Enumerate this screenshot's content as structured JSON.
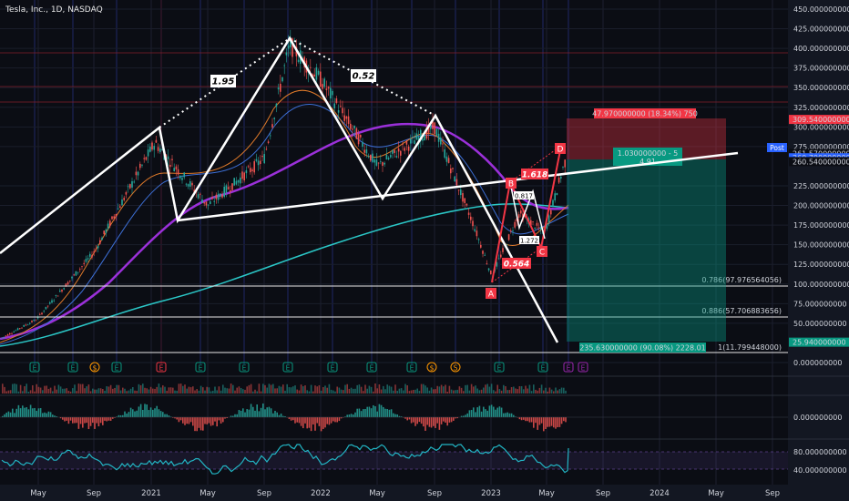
{
  "symbol": "Tesla, Inc., 1D, NASDAQ",
  "price_axis": {
    "ticks": [
      "450.000000000",
      "425.000000000",
      "400.000000000",
      "375.000000000",
      "350.000000000",
      "325.000000000",
      "300.000000000",
      "275.000000000",
      "225.000000000",
      "200.000000000",
      "175.000000000",
      "150.000000000",
      "125.000000000",
      "100.000000000",
      "75.000000000",
      "50.000000000",
      "0.000000000"
    ],
    "badges": [
      {
        "label": "309.540000000",
        "color": "#f23645"
      },
      {
        "label": "261.570000000",
        "color": "#0b0d14"
      },
      {
        "label": "260.700000000",
        "color": "#2962ff"
      },
      {
        "label": "260.540000000",
        "color": "#0b0d14"
      },
      {
        "label": "25.940000000",
        "color": "#089981"
      }
    ],
    "post_label": "Post"
  },
  "time_axis": [
    "May",
    "Sep",
    "2021",
    "May",
    "Sep",
    "2022",
    "May",
    "Sep",
    "2023",
    "May",
    "Sep",
    "2024",
    "May",
    "Sep"
  ],
  "harmonic": {
    "ratios": [
      "1.95",
      "0.52"
    ],
    "abcd_ratios": [
      "1.618",
      "0.564",
      "0.817",
      "1.272"
    ],
    "points": [
      "A",
      "B",
      "C",
      "D"
    ]
  },
  "fib_levels": [
    "0.786(97.976564056)",
    "0.886(57.706883656)",
    "1(11.799448000)"
  ],
  "position": {
    "risk_label": "47.970000000 (18.34%) 750",
    "entry_label": "1.030000000 - 5",
    "entry_sub": "4.91",
    "reward_label": "235.630000000 (90.08%) 2228.01"
  },
  "oscillator_panels": {
    "macd_tick": "0.000000000",
    "rsi_ticks": [
      "80.000000000",
      "40.000000000"
    ]
  },
  "events": [
    "E",
    "E",
    "$",
    "E",
    "E",
    "E",
    "E",
    "E",
    "E",
    "E",
    "E",
    "$",
    "S",
    "E",
    "E",
    "E",
    "E"
  ],
  "chart_data": {
    "type": "line",
    "title": "Tesla, Inc., 1D, NASDAQ",
    "x": [
      "2020-03",
      "2020-05",
      "2020-09",
      "2021-01",
      "2021-05",
      "2021-09",
      "2021-11",
      "2022-01",
      "2022-05",
      "2022-09",
      "2022-12",
      "2023-01",
      "2023-03",
      "2023-05",
      "2023-06"
    ],
    "series": [
      {
        "values": [
          30,
          55,
          140,
          280,
          200,
          260,
          405,
          360,
          250,
          300,
          175,
          110,
          190,
          165,
          255
        ]
      }
    ],
    "ylim": [
      0,
      450
    ],
    "grid": true,
    "scale": "linear"
  }
}
